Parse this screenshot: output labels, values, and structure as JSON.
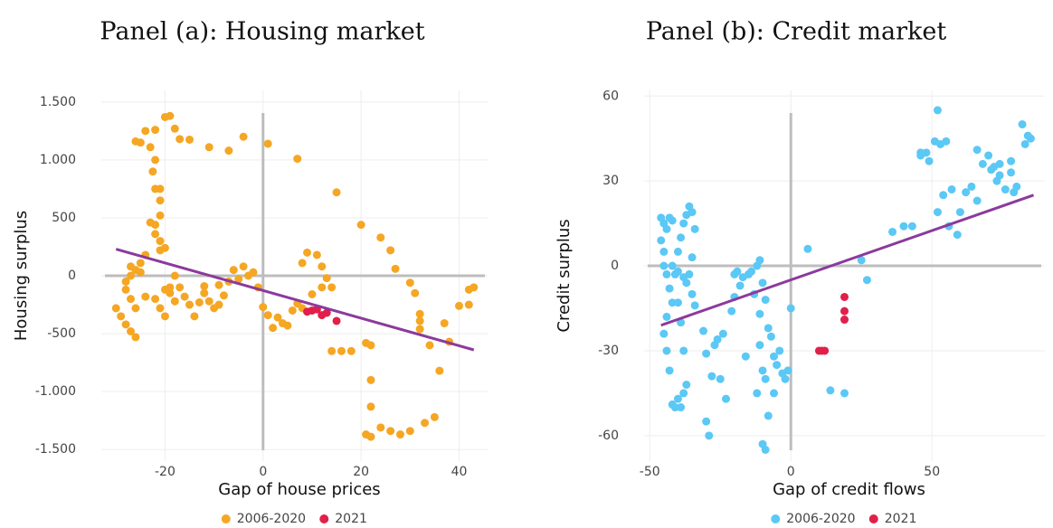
{
  "chart_data": [
    {
      "type": "scatter",
      "title": "Panel (a): Housing market",
      "x_label": "Gap of house prices",
      "y_label": "Housing surplus",
      "xlim": [
        -33,
        46
      ],
      "ylim": [
        -1600,
        1600
      ],
      "xticks": [
        -20,
        0,
        20,
        40
      ],
      "yticks": [
        {
          "value": -1500,
          "label": "-1.500"
        },
        {
          "value": -1000,
          "label": "-1.000"
        },
        -500,
        0,
        500,
        {
          "value": 1000,
          "label": "1.000"
        },
        {
          "value": 1500,
          "label": "1.500"
        }
      ],
      "grid": true,
      "zero_lines": true,
      "legend": "bottom",
      "series": [
        {
          "name": "2006-2020",
          "color": "#f5a623",
          "x": [
            -20,
            -19,
            -18,
            -17,
            -15,
            -11,
            -7,
            -4,
            1,
            -22,
            -24,
            -25,
            -26,
            -23,
            -22,
            -22.5,
            -22,
            -21,
            -21,
            -21,
            -23,
            -22,
            -22,
            -21,
            -20,
            -21,
            -24,
            -25,
            -30,
            -29,
            -28,
            -27,
            -26,
            -28,
            -27,
            -27,
            -26,
            -25,
            -27,
            -26,
            -28,
            -24,
            -22,
            -21,
            -20,
            -19,
            -18,
            -17,
            -16,
            -15,
            -14,
            -13,
            -12,
            -11,
            -10,
            -9,
            -8,
            -7,
            -6,
            -5,
            -4,
            -3,
            -2,
            -1,
            -18,
            -20,
            -19,
            -9,
            -12,
            0,
            1,
            2,
            3,
            4,
            5,
            6,
            7,
            8,
            9,
            10,
            11,
            12,
            13,
            14,
            15,
            7,
            8,
            12,
            14,
            16,
            18,
            20,
            21,
            22,
            22,
            22,
            21,
            22,
            24,
            24,
            26,
            26,
            27,
            28,
            30,
            30,
            31,
            32,
            32,
            32,
            33,
            34,
            35,
            36,
            37,
            38,
            40,
            42,
            42,
            43
          ],
          "y": [
            1370,
            1380,
            1270,
            1180,
            1175,
            1110,
            1080,
            1200,
            1140,
            1260,
            1250,
            1150,
            1160,
            1110,
            1000,
            900,
            750,
            750,
            650,
            520,
            460,
            440,
            360,
            300,
            240,
            220,
            180,
            110,
            -280,
            -350,
            -420,
            -480,
            -530,
            -120,
            0,
            80,
            50,
            30,
            -200,
            -280,
            -50,
            -180,
            -200,
            -280,
            -350,
            -150,
            -220,
            -100,
            -180,
            -250,
            -350,
            -230,
            -150,
            -220,
            -280,
            -80,
            -170,
            -50,
            50,
            -30,
            80,
            0,
            30,
            -100,
            0,
            -120,
            -100,
            -250,
            -90,
            -270,
            -340,
            -450,
            -360,
            -410,
            -430,
            -300,
            -240,
            110,
            200,
            -160,
            180,
            80,
            -20,
            -100,
            720,
            1010,
            -280,
            -100,
            -650,
            -650,
            -650,
            440,
            -580,
            -600,
            -900,
            -1130,
            -1370,
            -1390,
            330,
            -1310,
            220,
            -1340,
            60,
            -1370,
            -60,
            -1340,
            -150,
            -330,
            -390,
            -460,
            -1270,
            -600,
            -1220,
            -820,
            -410,
            -570,
            -260,
            -250,
            -120,
            -100
          ]
        },
        {
          "name": "2021",
          "color": "#e0204a",
          "x": [
            9,
            10,
            11,
            12,
            13,
            15
          ],
          "y": [
            -310,
            -300,
            -290,
            -340,
            -320,
            -390
          ]
        }
      ],
      "fit": {
        "color": "#8b3a9c",
        "x": [
          -30,
          43
        ],
        "y": [
          230,
          -640
        ]
      }
    },
    {
      "type": "scatter",
      "title": "Panel (b): Credit market",
      "x_label": "Gap of credit flows",
      "y_label": "Credit surplus",
      "xlim": [
        -52,
        90
      ],
      "ylim": [
        -69,
        62
      ],
      "xticks": [
        -50,
        0,
        50
      ],
      "yticks": [
        -60,
        -30,
        0,
        30,
        60
      ],
      "grid": true,
      "zero_lines": true,
      "legend": "bottom",
      "series": [
        {
          "name": "2006-2020",
          "color": "#5bc8f5",
          "x": [
            -46,
            -45,
            -44,
            -43,
            -42,
            -46,
            -45,
            -45,
            -44,
            -43,
            -42,
            -44,
            -45,
            -44,
            -43,
            -42,
            -41,
            -40,
            -39,
            -38,
            -37,
            -38,
            -39,
            -40,
            -41,
            -40,
            -39,
            -38,
            -37,
            -36,
            -35,
            -34,
            -35,
            -36,
            -37,
            -35,
            -34,
            -38,
            -40,
            -42,
            -31,
            -30,
            -30,
            -29,
            -28,
            -27,
            -26,
            -25,
            -24,
            -23,
            -21,
            -20,
            -20,
            -19,
            -18,
            -17,
            -16,
            -15,
            -14,
            -13,
            -12,
            -11,
            -11,
            -10,
            -9,
            -8,
            -7,
            -6,
            -5,
            -4,
            -3,
            -10,
            -9,
            -8,
            -12,
            -11,
            -10,
            -9,
            -2,
            -1,
            0,
            -6,
            6,
            14,
            19,
            25,
            27,
            36,
            43,
            46,
            48,
            49,
            51,
            52,
            53,
            52,
            54,
            55,
            57,
            59,
            60,
            62,
            64,
            66,
            68,
            70,
            72,
            73,
            74,
            76,
            78,
            79,
            80,
            82,
            83,
            85,
            84,
            78,
            74,
            71,
            66,
            56,
            46,
            40
          ],
          "y": [
            17,
            15,
            13,
            17,
            16,
            9,
            5,
            0,
            -3,
            -8,
            -13,
            -18,
            -24,
            -30,
            -37,
            -49,
            -50,
            -47,
            -50,
            -45,
            -42,
            -30,
            -20,
            -13,
            -3,
            5,
            10,
            15,
            18,
            21,
            19,
            13,
            3,
            -3,
            -6,
            -10,
            -14,
            -4,
            -2,
            0,
            -23,
            -31,
            -55,
            -60,
            -39,
            -28,
            -26,
            -40,
            -24,
            -47,
            -16,
            -11,
            -3,
            -2,
            -7,
            -4,
            -32,
            -3,
            -2,
            -10,
            -45,
            -17,
            -28,
            -37,
            -40,
            -22,
            -25,
            -32,
            -35,
            -30,
            -38,
            -63,
            -65,
            -53,
            0,
            2,
            -6,
            -12,
            -40,
            -37,
            -15,
            -45,
            6,
            -44,
            -45,
            2,
            -5,
            12,
            14,
            39,
            40,
            37,
            44,
            55,
            43,
            19,
            25,
            44,
            27,
            11,
            19,
            26,
            28,
            41,
            36,
            39,
            35,
            30,
            36,
            27,
            37,
            26,
            28,
            50,
            43,
            45,
            46,
            33,
            32,
            34,
            23,
            14,
            40,
            14
          ]
        },
        {
          "name": "2021",
          "color": "#e0204a",
          "x": [
            10,
            11,
            12,
            19,
            19,
            19
          ],
          "y": [
            -30,
            -30,
            -30,
            -11,
            -16,
            -19
          ]
        }
      ],
      "fit": {
        "color": "#8b3a9c",
        "x": [
          -46,
          86
        ],
        "y": [
          -21,
          25
        ]
      }
    }
  ]
}
